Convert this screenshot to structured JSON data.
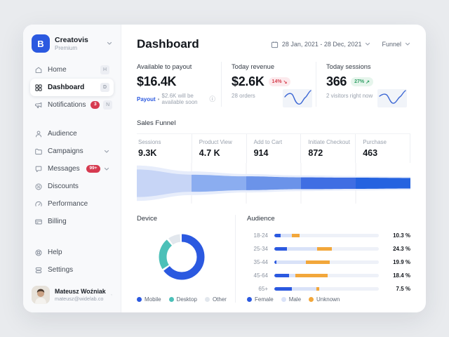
{
  "sidebar": {
    "workspace": {
      "name": "Creatovis",
      "plan": "Premium"
    },
    "menu_top": [
      {
        "label": "Home",
        "shortcut": "H"
      },
      {
        "label": "Dashboard",
        "shortcut": "D"
      },
      {
        "label": "Notifications",
        "shortcut": "N",
        "badge": "3"
      }
    ],
    "menu_main": [
      {
        "label": "Audience"
      },
      {
        "label": "Campaigns"
      },
      {
        "label": "Messages",
        "badge": "99+"
      },
      {
        "label": "Discounts"
      },
      {
        "label": "Performance"
      },
      {
        "label": "Billing"
      }
    ],
    "menu_bottom": [
      {
        "label": "Help"
      },
      {
        "label": "Settings"
      }
    ],
    "user": {
      "name": "Mateusz Woźniak",
      "email": "mateusz@widelab.co"
    }
  },
  "header": {
    "title": "Dashboard",
    "date_range": "28 Jan, 2021 - 28 Dec, 2021",
    "view_selector": "Funnel"
  },
  "stats": [
    {
      "label": "Available to payout",
      "value": "$16.4K",
      "link_label": "Payout",
      "bullet": "•",
      "note": "$2.6K will be available soon",
      "info": "ⓘ"
    },
    {
      "label": "Today revenue",
      "value": "$2.6K",
      "badge_value": "14%",
      "badge_arrow": "↘",
      "trend": "down",
      "note": "28 orders"
    },
    {
      "label": "Today sessions",
      "value": "366",
      "badge_value": "27%",
      "badge_arrow": "↗",
      "trend": "up",
      "note": "2 visitors right now"
    }
  ],
  "funnel": {
    "title": "Sales Funnel",
    "stages": [
      {
        "label": "Sessions",
        "value": "9.3K"
      },
      {
        "label": "Product View",
        "value": "4.7 K"
      },
      {
        "label": "Add to Cart",
        "value": "914"
      },
      {
        "label": "Initiate Checkout",
        "value": "872"
      },
      {
        "label": "Purchase",
        "value": "463"
      }
    ],
    "segment_colors": [
      "#c7d5f6",
      "#8badf0",
      "#6b93e9",
      "#3f6ee3",
      "#2563e0"
    ],
    "envelope_color": "#e7edfb"
  },
  "device": {
    "title": "Device",
    "slices": [
      {
        "label": "Mobile",
        "pct": 66,
        "color": "#2b59e0"
      },
      {
        "label": "Desktop",
        "pct": 24,
        "color": "#4cc0b8"
      },
      {
        "label": "Other",
        "pct": 10,
        "color": "#e2e7ed"
      }
    ]
  },
  "audience": {
    "title": "Audience",
    "rows": [
      {
        "label": "18-24",
        "value": "10.3 %",
        "segments": [
          6,
          11,
          7
        ]
      },
      {
        "label": "25-34",
        "value": "24.3 %",
        "segments": [
          12,
          29,
          14
        ]
      },
      {
        "label": "35-44",
        "value": "19.9 %",
        "segments": [
          2,
          28,
          23
        ]
      },
      {
        "label": "45-64",
        "value": "18.4 %",
        "segments": [
          14,
          6,
          31
        ]
      },
      {
        "label": "65+",
        "value": "7.5 %",
        "segments": [
          17,
          23,
          3
        ]
      }
    ],
    "legend": [
      {
        "label": "Female",
        "color": "#2b59e0"
      },
      {
        "label": "Male",
        "color": "#d9e2f8"
      },
      {
        "label": "Unknown",
        "color": "#f2a73b"
      }
    ]
  },
  "colors": {
    "primary_blue": "#2b59e0",
    "teal": "#4cc0b8",
    "slice_gray": "#e2e7ed",
    "orange": "#f2a73b",
    "male_light_blue": "#d9e2f8",
    "badge_red": "#d6414f",
    "badge_green": "#2f9e63"
  }
}
